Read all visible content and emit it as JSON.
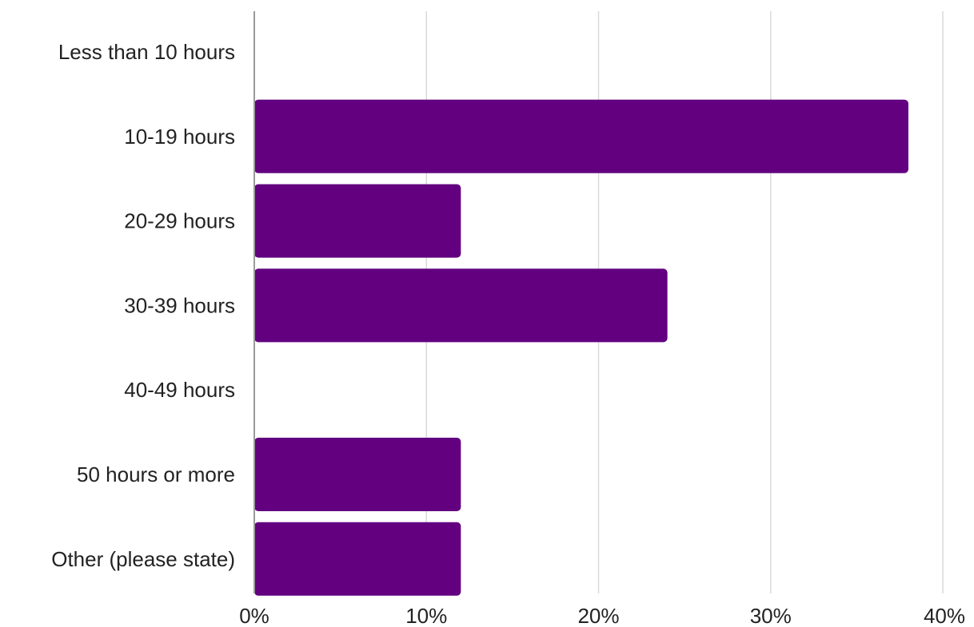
{
  "chart_data": {
    "type": "bar",
    "orientation": "horizontal",
    "categories": [
      "Less than 10 hours",
      "10-19 hours",
      "20-29 hours",
      "30-39 hours",
      "40-49 hours",
      "50 hours or more",
      "Other (please state)"
    ],
    "values": [
      0,
      38,
      12,
      24,
      0,
      12,
      12
    ],
    "unit": "%",
    "xlim": [
      0,
      40
    ],
    "xticks": [
      0,
      10,
      20,
      30,
      40
    ],
    "xtick_labels": [
      "0%",
      "10%",
      "20%",
      "30%",
      "40%"
    ],
    "grid": "vertical",
    "legend": "none",
    "bar_color": "#620080",
    "grid_color": "#d9d9d9",
    "axis_color": "#9a9a9a"
  }
}
